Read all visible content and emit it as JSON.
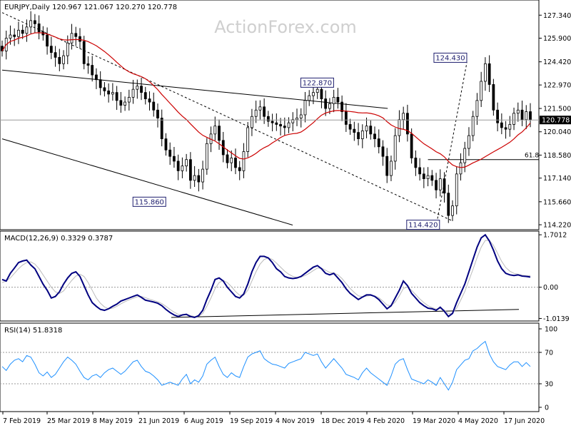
{
  "watermark": "ActionForex.com",
  "chart_data": {
    "type": "candlestick",
    "price_panel": {
      "header": "EURJPY,Daily  120.967 121.067 120.270 120.778",
      "ylim": [
        114.0,
        128.2
      ],
      "ticks": [
        "127.340",
        "125.900",
        "124.420",
        "122.970",
        "121.500",
        "120.040",
        "118.580",
        "117.140",
        "115.660",
        "114.220"
      ],
      "last_price": "120.778",
      "annotations": [
        "115.860",
        "122.870",
        "124.430",
        "114.420"
      ],
      "fib_label": "61.8",
      "fib_level": 118.3,
      "closes": [
        125.1,
        125.9,
        126.1,
        126.0,
        126.4,
        126.2,
        126.6,
        127.0,
        126.8,
        126.3,
        126.1,
        125.4,
        125.0,
        124.7,
        124.3,
        124.8,
        125.6,
        126.2,
        126.0,
        125.7,
        124.3,
        124.2,
        123.6,
        123.3,
        122.8,
        122.6,
        122.4,
        122.5,
        122.0,
        121.7,
        121.9,
        122.2,
        122.7,
        122.9,
        122.5,
        122.1,
        121.9,
        121.4,
        120.9,
        119.6,
        118.9,
        118.5,
        118.2,
        117.6,
        117.9,
        118.3,
        117.0,
        117.3,
        116.9,
        117.7,
        119.3,
        119.9,
        120.4,
        119.5,
        118.6,
        118.1,
        118.4,
        117.8,
        117.6,
        118.8,
        120.3,
        121.0,
        121.4,
        121.6,
        121.0,
        120.7,
        120.6,
        120.5,
        120.4,
        120.3,
        120.6,
        120.8,
        120.9,
        121.1,
        122.0,
        122.3,
        122.5,
        122.7,
        122.1,
        121.5,
        121.8,
        122.2,
        121.9,
        121.3,
        120.5,
        120.2,
        120.0,
        119.6,
        120.1,
        120.4,
        119.9,
        119.6,
        119.1,
        118.5,
        117.3,
        118.2,
        119.8,
        120.8,
        121.2,
        119.9,
        118.4,
        117.8,
        117.4,
        117.1,
        117.3,
        117.0,
        116.4,
        117.1,
        116.2,
        114.8,
        115.4,
        117.4,
        118.1,
        119.0,
        119.8,
        121.0,
        122.0,
        123.2,
        124.3,
        123.0,
        121.4,
        120.6,
        120.3,
        120.2,
        120.5,
        121.2,
        121.4,
        120.8,
        121.3,
        120.8
      ],
      "channel_upper": [
        [
          0,
          123.9
        ],
        [
          136,
          121.5
        ]
      ],
      "channel_lower": [
        [
          0,
          119.6
        ],
        [
          103,
          114.2
        ]
      ],
      "trendline": [
        [
          0,
          127.5
        ],
        [
          143,
          114.5
        ]
      ],
      "fib_line": [
        [
          146,
          118.3
        ],
        [
          191,
          118.3
        ]
      ],
      "support_dotted": [
        [
          148,
          114.6
        ],
        [
          158,
          124.4
        ]
      ]
    },
    "macd_panel": {
      "header": "MACD(12,26,9) 0.3329 0.3787",
      "ylim": [
        -1.05,
        1.75
      ],
      "ticks": [
        "1.7012",
        "0.00",
        "-1.0139"
      ],
      "macd": [
        0.25,
        0.2,
        0.45,
        0.62,
        0.8,
        0.85,
        0.88,
        0.72,
        0.6,
        0.35,
        0.1,
        -0.1,
        -0.35,
        -0.3,
        -0.15,
        0.1,
        0.3,
        0.45,
        0.5,
        0.35,
        0.05,
        -0.25,
        -0.5,
        -0.62,
        -0.72,
        -0.75,
        -0.7,
        -0.62,
        -0.55,
        -0.45,
        -0.4,
        -0.35,
        -0.3,
        -0.25,
        -0.33,
        -0.42,
        -0.45,
        -0.48,
        -0.52,
        -0.6,
        -0.72,
        -0.82,
        -0.9,
        -0.95,
        -0.9,
        -0.88,
        -0.95,
        -0.98,
        -0.92,
        -0.75,
        -0.4,
        -0.1,
        0.25,
        0.3,
        0.2,
        0.0,
        -0.15,
        -0.3,
        -0.35,
        -0.22,
        0.1,
        0.5,
        0.8,
        1.0,
        1.0,
        0.95,
        0.8,
        0.6,
        0.5,
        0.35,
        0.3,
        0.28,
        0.3,
        0.35,
        0.45,
        0.55,
        0.65,
        0.7,
        0.6,
        0.45,
        0.4,
        0.45,
        0.3,
        0.15,
        -0.05,
        -0.2,
        -0.3,
        -0.4,
        -0.32,
        -0.25,
        -0.25,
        -0.3,
        -0.4,
        -0.55,
        -0.7,
        -0.6,
        -0.35,
        -0.1,
        0.2,
        0.05,
        -0.2,
        -0.35,
        -0.5,
        -0.6,
        -0.68,
        -0.7,
        -0.75,
        -0.65,
        -0.78,
        -0.95,
        -0.85,
        -0.5,
        -0.2,
        0.1,
        0.5,
        0.9,
        1.3,
        1.6,
        1.7,
        1.5,
        1.2,
        0.85,
        0.6,
        0.45,
        0.4,
        0.38,
        0.4,
        0.36,
        0.35,
        0.33
      ],
      "signal": [
        0.15,
        0.2,
        0.3,
        0.45,
        0.6,
        0.72,
        0.8,
        0.82,
        0.75,
        0.6,
        0.4,
        0.2,
        0.0,
        -0.15,
        -0.2,
        -0.12,
        0.05,
        0.22,
        0.36,
        0.42,
        0.35,
        0.15,
        -0.1,
        -0.35,
        -0.52,
        -0.64,
        -0.7,
        -0.68,
        -0.62,
        -0.54,
        -0.47,
        -0.41,
        -0.36,
        -0.31,
        -0.3,
        -0.34,
        -0.39,
        -0.43,
        -0.47,
        -0.53,
        -0.62,
        -0.72,
        -0.81,
        -0.88,
        -0.9,
        -0.9,
        -0.92,
        -0.95,
        -0.94,
        -0.85,
        -0.62,
        -0.35,
        -0.05,
        0.15,
        0.22,
        0.15,
        0.02,
        -0.14,
        -0.26,
        -0.26,
        -0.1,
        0.2,
        0.5,
        0.75,
        0.9,
        0.95,
        0.9,
        0.78,
        0.65,
        0.52,
        0.42,
        0.35,
        0.32,
        0.33,
        0.38,
        0.45,
        0.54,
        0.62,
        0.62,
        0.55,
        0.48,
        0.46,
        0.4,
        0.28,
        0.12,
        -0.04,
        -0.17,
        -0.28,
        -0.31,
        -0.29,
        -0.27,
        -0.28,
        -0.34,
        -0.45,
        -0.58,
        -0.6,
        -0.48,
        -0.28,
        -0.04,
        0.01,
        -0.1,
        -0.24,
        -0.38,
        -0.5,
        -0.6,
        -0.66,
        -0.71,
        -0.69,
        -0.74,
        -0.86,
        -0.86,
        -0.68,
        -0.42,
        -0.14,
        0.22,
        0.58,
        0.96,
        1.3,
        1.52,
        1.52,
        1.36,
        1.1,
        0.84,
        0.64,
        0.52,
        0.45,
        0.42,
        0.39,
        0.37,
        0.38
      ],
      "trendline": [
        [
          120,
          -1.0
        ],
        [
          363,
          -0.7
        ]
      ]
    },
    "rsi_panel": {
      "header": "RSI(14) 51.8318",
      "ylim": [
        0,
        100
      ],
      "ticks": [
        "100",
        "70",
        "30",
        "0"
      ],
      "levels": [
        70,
        30
      ],
      "values": [
        52,
        47,
        55,
        60,
        62,
        58,
        66,
        64,
        55,
        44,
        40,
        45,
        38,
        42,
        50,
        58,
        64,
        60,
        55,
        46,
        38,
        35,
        40,
        42,
        38,
        44,
        48,
        50,
        46,
        42,
        46,
        52,
        58,
        60,
        52,
        46,
        44,
        40,
        35,
        28,
        30,
        32,
        30,
        28,
        36,
        42,
        30,
        35,
        32,
        40,
        55,
        60,
        64,
        52,
        42,
        38,
        44,
        40,
        38,
        52,
        64,
        68,
        70,
        72,
        62,
        58,
        55,
        54,
        52,
        50,
        56,
        58,
        60,
        62,
        70,
        68,
        66,
        68,
        58,
        50,
        56,
        62,
        56,
        50,
        42,
        40,
        38,
        35,
        44,
        50,
        44,
        40,
        36,
        32,
        28,
        40,
        55,
        60,
        62,
        48,
        36,
        34,
        32,
        30,
        35,
        32,
        28,
        38,
        30,
        22,
        32,
        48,
        54,
        60,
        62,
        72,
        75,
        80,
        84,
        68,
        58,
        52,
        50,
        48,
        54,
        58,
        58,
        52,
        57,
        52
      ]
    },
    "x_ticks": [
      "7 Feb 2019",
      "25 Mar 2019",
      "8 May 2019",
      "21 Jun 2019",
      "6 Aug 2019",
      "19 Sep 2019",
      "4 Nov 2019",
      "18 Dec 2019",
      "4 Feb 2020",
      "19 Mar 2020",
      "4 May 2020",
      "17 Jun 2020"
    ]
  }
}
